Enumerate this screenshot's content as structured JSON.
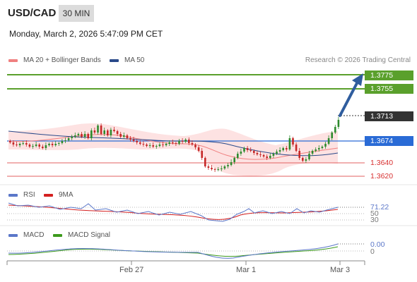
{
  "header": {
    "symbol": "USD/CAD",
    "timeframe": "30 MIN",
    "timestamp": "Monday, March 2, 2026 5:47:09 PM CET"
  },
  "legend": {
    "ma20_label": "MA 20 + Bollinger Bands",
    "ma50_label": "MA 50",
    "credit": "Research © 2026 Trading Central"
  },
  "price_levels": {
    "r2": "1.3775",
    "r1": "1.3755",
    "current": "1.3713",
    "pivot": "1.3674",
    "s1": "1.3640",
    "s2": "1.3620"
  },
  "rsi_panel": {
    "rsi_label": "RSI",
    "ma_label": "9MA",
    "value": "71.22",
    "level_mid": "50",
    "level_low": "30"
  },
  "macd_panel": {
    "macd_label": "MACD",
    "signal_label": "MACD Signal",
    "value": "0.00",
    "zero": "0"
  },
  "x_axis": {
    "labels": [
      "Feb 27",
      "Mar 1",
      "Mar 3"
    ]
  },
  "colors": {
    "resistance": "#5aa02c",
    "support": "#e36060",
    "pivot": "#2a6bd6",
    "current": "#333333",
    "ma20": "#f08080",
    "ma50": "#2a4a8a",
    "candle_up": "#2e8b2e",
    "candle_down": "#c62828",
    "arrow": "#2f5d9e",
    "rsi": "#5b77c9",
    "rsi_ma": "#d42020",
    "macd": "#5b77c9",
    "macd_signal": "#3c9a1c"
  }
}
